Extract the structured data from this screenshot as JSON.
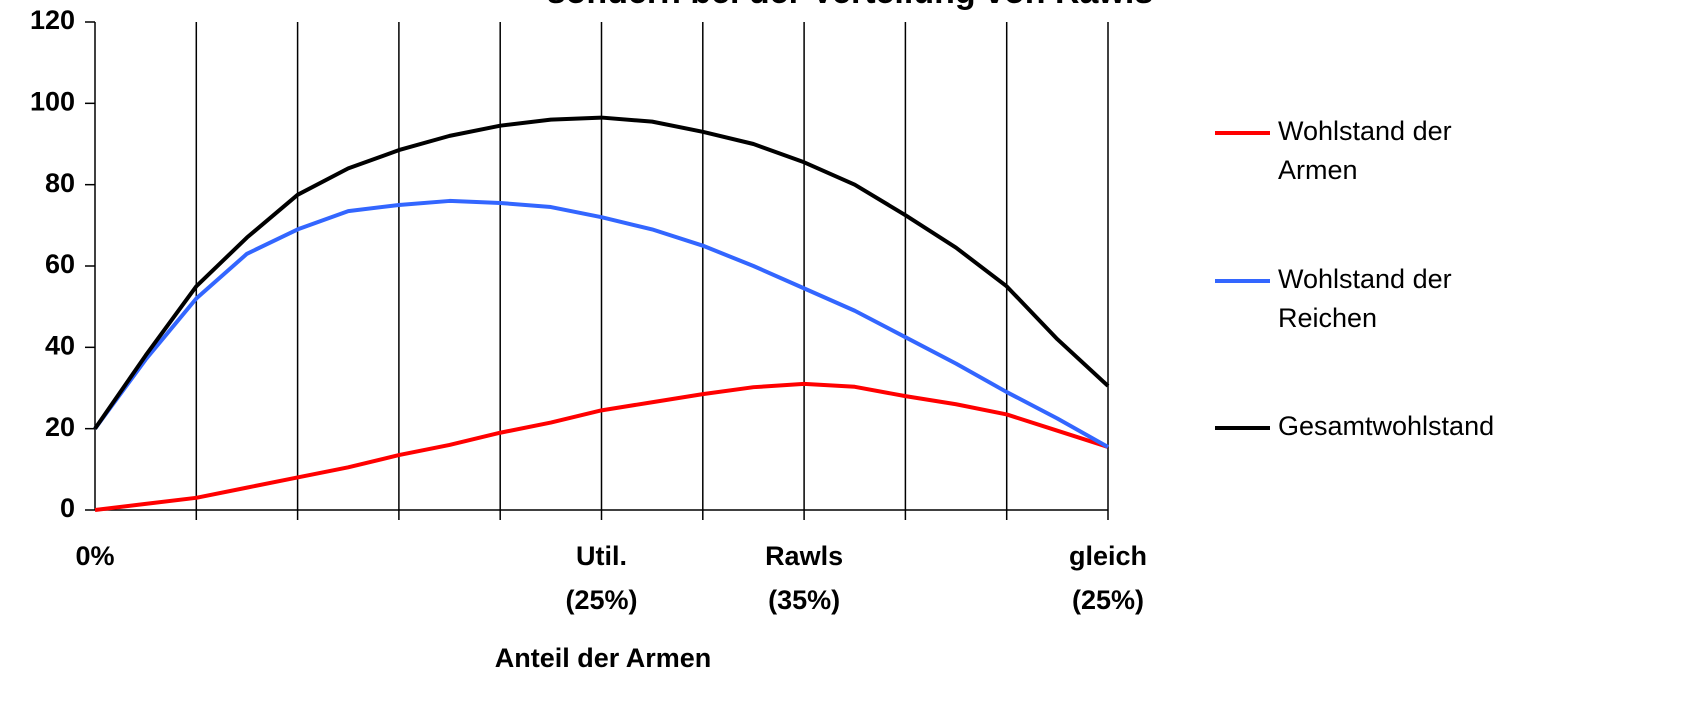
{
  "chart_data": {
    "type": "line",
    "title": "sondern bei der Verteilung von Rawls",
    "x_label": "Anteil der Armen",
    "categories": [
      "0%",
      null,
      null,
      null,
      null,
      null,
      null,
      null,
      null,
      null,
      "Util. (25%)",
      null,
      null,
      null,
      "Rawls (35%)",
      null,
      null,
      null,
      null,
      null,
      "gleich (25%)"
    ],
    "series": [
      {
        "name": "Wohlstand der Armen",
        "color": "#ff0000",
        "values": [
          0,
          1.5,
          3,
          5.5,
          8,
          10.5,
          13.5,
          16,
          19,
          21.5,
          24.5,
          26.5,
          28.5,
          30.2,
          31,
          30.3,
          28,
          26,
          23.5,
          19.5,
          15.5
        ]
      },
      {
        "name": "Wohlstand der Reichen",
        "color": "#3366ff",
        "values": [
          20,
          37,
          52,
          63,
          69,
          73.5,
          75,
          76,
          75.5,
          74.5,
          72,
          69,
          65,
          60,
          54.5,
          49,
          42.5,
          36,
          29,
          22.5,
          15.5
        ]
      },
      {
        "name": "Gesamtwohlstand",
        "color": "#000000",
        "values": [
          20,
          38,
          55,
          67,
          77.5,
          84,
          88.5,
          92,
          94.5,
          96,
          96.5,
          95.5,
          93,
          90,
          85.5,
          80,
          72.5,
          64.5,
          55,
          42,
          30.5
        ]
      }
    ],
    "ylim": [
      0,
      120
    ],
    "yticks": [
      0,
      20,
      40,
      60,
      80,
      100,
      120
    ],
    "grid": true
  }
}
